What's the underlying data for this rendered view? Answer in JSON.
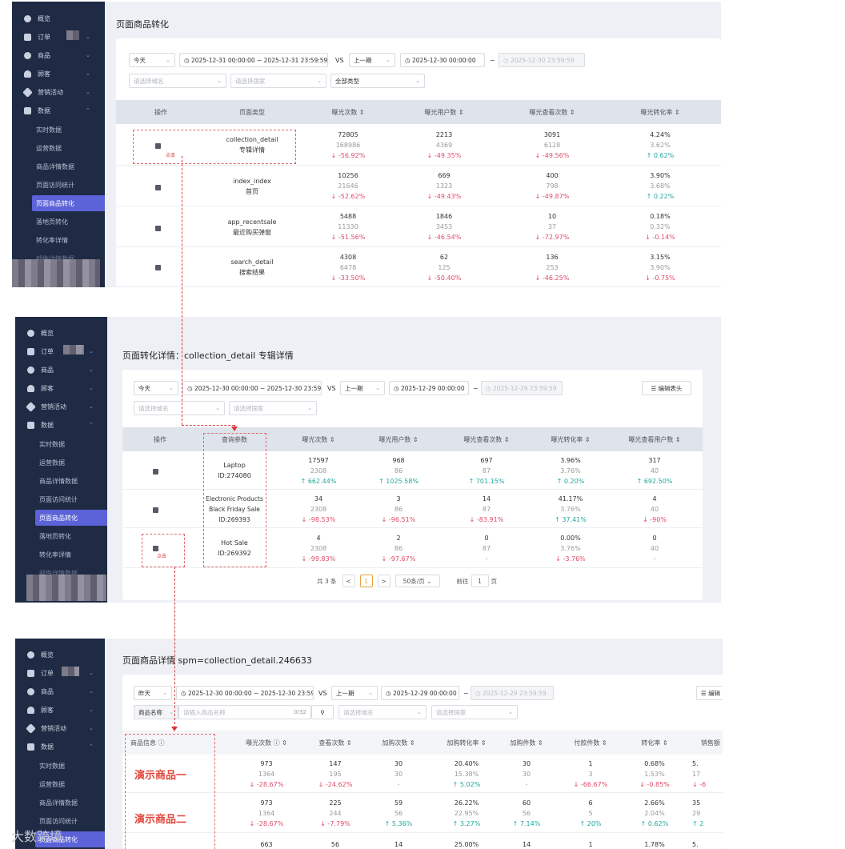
{
  "sidebar": {
    "menu": [
      "概览",
      "订单",
      "商品",
      "顾客",
      "营销活动",
      "数据"
    ],
    "submenu": [
      "实时数据",
      "运营数据",
      "商品详情数据",
      "页面访问统计",
      "页面商品转化",
      "落地页转化",
      "转化率详情",
      "邮件详情数据"
    ]
  },
  "icons": [
    "dashboard-icon",
    "order-icon",
    "product-icon",
    "user-icon",
    "tag-icon",
    "chart-icon"
  ],
  "colors": {
    "sidebar": "#1f2a44",
    "active": "#5c63d8",
    "down": "#e04a6a",
    "up": "#21a8a0",
    "annotation": "#d8383a"
  },
  "panel1": {
    "title": "页面商品转化",
    "filters": {
      "period": "今天",
      "range": "2025-12-31 00:00:00 ~ 2025-12-31 23:59:59",
      "vs": "VS",
      "compare": "上一期",
      "cmp_start": "2025-12-30 00:00:00",
      "tilde": "~",
      "cmp_end": "2025-12-30 23:59:59",
      "domain_ph": "请选择域名",
      "country_ph": "请选择国家",
      "type": "全部类型"
    },
    "headers": [
      "操作",
      "页面类型",
      "曝光次数 ⇕",
      "曝光用户数 ⇕",
      "曝光查看次数 ⇕",
      "曝光转化率 ⇕"
    ],
    "click_label": "点击",
    "rows": [
      {
        "name": "collection_detail",
        "label": "专辑详情",
        "c1": [
          "72805",
          "168986",
          "↓ -56.92%"
        ],
        "c2": [
          "2213",
          "4369",
          "↓ -49.35%"
        ],
        "c3": [
          "3091",
          "6128",
          "↓ -49.56%"
        ],
        "c4": [
          "4.24%",
          "3.62%",
          "↑ 0.62%"
        ]
      },
      {
        "name": "index_index",
        "label": "首页",
        "c1": [
          "10256",
          "21646",
          "↓ -52.62%"
        ],
        "c2": [
          "669",
          "1323",
          "↓ -49.43%"
        ],
        "c3": [
          "400",
          "798",
          "↓ -49.87%"
        ],
        "c4": [
          "3.90%",
          "3.68%",
          "↑ 0.22%"
        ]
      },
      {
        "name": "app_recentsale",
        "label": "最近购买弹窗",
        "c1": [
          "5488",
          "11330",
          "↓ -51.56%"
        ],
        "c2": [
          "1846",
          "3453",
          "↓ -46.54%"
        ],
        "c3": [
          "10",
          "37",
          "↓ -72.97%"
        ],
        "c4": [
          "0.18%",
          "0.32%",
          "↓ -0.14%"
        ]
      },
      {
        "name": "search_detail",
        "label": "搜索结果",
        "c1": [
          "4308",
          "6478",
          "↓ -33.50%"
        ],
        "c2": [
          "62",
          "125",
          "↓ -50.40%"
        ],
        "c3": [
          "136",
          "253",
          "↓ -46.25%"
        ],
        "c4": [
          "3.15%",
          "3.90%",
          "↓ -0.75%"
        ]
      }
    ]
  },
  "panel2": {
    "title": "页面转化详情：collection_detail 专辑详情",
    "filters": {
      "period": "今天",
      "range": "2025-12-30 00:00:00 ~ 2025-12-30 23:59:59",
      "vs": "VS",
      "compare": "上一期",
      "cmp_start": "2025-12-29 00:00:00",
      "tilde": "~",
      "cmp_end": "2025-12-29 23:59:59",
      "domain_ph": "请选择域名",
      "country_ph": "请选择国家",
      "edit": "编辑表头"
    },
    "headers": [
      "操作",
      "查询参数",
      "曝光次数 ⇕",
      "曝光用户数 ⇕",
      "曝光查看次数 ⇕",
      "曝光转化率 ⇕",
      "曝光查看用户数 ⇕"
    ],
    "click_label": "点击",
    "rows": [
      {
        "lines": [
          "Laptop",
          "ID:274080"
        ],
        "c1": [
          "17597",
          "2308",
          "↑ 662.44%"
        ],
        "c2": [
          "968",
          "86",
          "↑ 1025.58%"
        ],
        "c3": [
          "697",
          "87",
          "↑ 701.15%"
        ],
        "c4": [
          "3.96%",
          "3.76%",
          "↑ 0.20%"
        ],
        "c5": [
          "317",
          "40",
          "↑ 692.50%"
        ]
      },
      {
        "lines": [
          "Electronic Products",
          "Black Friday Sale",
          "ID:269393"
        ],
        "c1": [
          "34",
          "2308",
          "↓ -98.53%"
        ],
        "c2": [
          "3",
          "86",
          "↓ -96.51%"
        ],
        "c3": [
          "14",
          "87",
          "↓ -83.91%"
        ],
        "c4": [
          "41.17%",
          "3.76%",
          "↑ 37.41%"
        ],
        "c5": [
          "4",
          "40",
          "↓ -90%"
        ]
      },
      {
        "lines": [
          "Hot Sale",
          "ID:269392"
        ],
        "c1": [
          "4",
          "2308",
          "↓ -99.83%"
        ],
        "c2": [
          "2",
          "86",
          "↓ -97.67%"
        ],
        "c3": [
          "0",
          "87",
          "-"
        ],
        "c4": [
          "0.00%",
          "3.76%",
          "↓ -3.76%"
        ],
        "c5": [
          "0",
          "40",
          "-"
        ]
      }
    ],
    "pager": {
      "total": "共 3 条",
      "prev": "<",
      "page": "1",
      "next": ">",
      "size": "50条/页",
      "goto": "前往",
      "goto_val": "1",
      "page_unit": "页"
    }
  },
  "panel3": {
    "title": "页面商品详情   spm=collection_detail.246633",
    "filters": {
      "period": "昨天",
      "range": "2025-12-30 00:00:00 ~ 2025-12-30 23:59:59",
      "vs": "VS",
      "compare": "上一期",
      "cmp_start": "2025-12-29 00:00:00",
      "tilde": "~",
      "cmp_end": "2025-12-29 23:59:59",
      "field": "商品名称",
      "search_ph": "请输入商品名称",
      "count": "0/32",
      "domain_ph": "请选择域名",
      "country_ph": "请选择国家",
      "edit": "编辑"
    },
    "headers": [
      "商品信息 ⓘ",
      "曝光次数 ⓘ ⇕",
      "查看次数 ⇕",
      "加购次数 ⇕",
      "加购转化率 ⇕",
      "加购件数 ⇕",
      "付款件数 ⇕",
      "转化率 ⇕",
      "销售额"
    ],
    "rows": [
      {
        "product": "演示商品一",
        "c": [
          [
            "973",
            "1364",
            "↓ -28.67%"
          ],
          [
            "147",
            "195",
            "↓ -24.62%"
          ],
          [
            "30",
            "30",
            "-"
          ],
          [
            "20.40%",
            "15.38%",
            "↑ 5.02%"
          ],
          [
            "30",
            "30",
            "-"
          ],
          [
            "1",
            "3",
            "↓ -66.67%"
          ],
          [
            "0.68%",
            "1.53%",
            "↓ -0.85%"
          ],
          [
            "5.",
            "17",
            "↓ -6"
          ]
        ]
      },
      {
        "product": "演示商品二",
        "c": [
          [
            "973",
            "1364",
            "↓ -28.67%"
          ],
          [
            "225",
            "244",
            "↓ -7.79%"
          ],
          [
            "59",
            "56",
            "↑ 5.36%"
          ],
          [
            "26.22%",
            "22.95%",
            "↑ 3.27%"
          ],
          [
            "60",
            "56",
            "↑ 7.14%"
          ],
          [
            "6",
            "5",
            "↑ 20%"
          ],
          [
            "2.66%",
            "2.04%",
            "↑ 0.62%"
          ],
          [
            "35",
            "29",
            "↑ 2"
          ]
        ]
      },
      {
        "product": "",
        "c": [
          [
            "663",
            "",
            ""
          ],
          [
            "56",
            "",
            ""
          ],
          [
            "14",
            "",
            ""
          ],
          [
            "25.00%",
            "",
            ""
          ],
          [
            "14",
            "",
            ""
          ],
          [
            "1",
            "",
            ""
          ],
          [
            "1.78%",
            "",
            ""
          ],
          [
            "5.",
            "",
            ""
          ]
        ]
      }
    ]
  },
  "watermark": "大数跨境"
}
